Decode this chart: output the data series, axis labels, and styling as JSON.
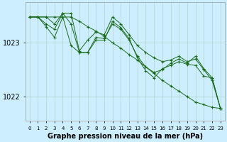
{
  "background_color": "#cceeff",
  "plot_bg_color": "#cceeff",
  "grid_color": "#aaccbb",
  "line_color": "#1a6b1a",
  "marker_color": "#1a6b1a",
  "xlabel": "Graphe pression niveau de la mer (hPa)",
  "xlabel_fontsize": 7,
  "ylabel_fontsize": 7,
  "yticks": [
    1022,
    1023
  ],
  "xlim": [
    -0.5,
    23.5
  ],
  "ylim": [
    1021.55,
    1023.75
  ],
  "series": [
    {
      "x": [
        0,
        1,
        2,
        3,
        4,
        5,
        6,
        7,
        8,
        9,
        10,
        11,
        12,
        13,
        14,
        15,
        16,
        17,
        18,
        19,
        20,
        21,
        22,
        23
      ],
      "y": [
        1023.48,
        1023.48,
        1023.48,
        1023.48,
        1023.48,
        1023.48,
        1023.4,
        1023.3,
        1023.22,
        1023.12,
        1023.0,
        1022.9,
        1022.78,
        1022.68,
        1022.55,
        1022.43,
        1022.3,
        1022.2,
        1022.1,
        1022.0,
        1021.9,
        1021.85,
        1021.8,
        1021.78
      ]
    },
    {
      "x": [
        0,
        1,
        2,
        3,
        4,
        5,
        6,
        7,
        8,
        9,
        10,
        11,
        12,
        13,
        14,
        15,
        16,
        17,
        18,
        19,
        20,
        21,
        22,
        23
      ],
      "y": [
        1023.48,
        1023.48,
        1023.48,
        1023.35,
        1023.55,
        1023.55,
        1022.85,
        1023.05,
        1023.2,
        1023.15,
        1023.48,
        1023.35,
        1023.15,
        1022.95,
        1022.82,
        1022.72,
        1022.65,
        1022.68,
        1022.75,
        1022.65,
        1022.7,
        1022.5,
        1022.3,
        1021.78
      ]
    },
    {
      "x": [
        0,
        1,
        2,
        3,
        4,
        5,
        6,
        7,
        8,
        9,
        10,
        11,
        12,
        13,
        14,
        15,
        16,
        17,
        18,
        19,
        20,
        21,
        22,
        23
      ],
      "y": [
        1023.48,
        1023.48,
        1023.35,
        1023.25,
        1023.55,
        1023.35,
        1022.82,
        1022.82,
        1023.1,
        1023.08,
        1023.35,
        1023.25,
        1023.05,
        1022.75,
        1022.55,
        1022.45,
        1022.5,
        1022.62,
        1022.7,
        1022.62,
        1022.75,
        1022.52,
        1022.35,
        1021.78
      ]
    },
    {
      "x": [
        0,
        1,
        2,
        3,
        4,
        5,
        6,
        7,
        8,
        9,
        10,
        11,
        12,
        13,
        14,
        15,
        16,
        17,
        18,
        19,
        20,
        21,
        22,
        23
      ],
      "y": [
        1023.48,
        1023.48,
        1023.3,
        1023.1,
        1023.48,
        1022.95,
        1022.82,
        1022.82,
        1023.05,
        1023.05,
        1023.4,
        1023.28,
        1023.08,
        1022.72,
        1022.48,
        1022.35,
        1022.52,
        1022.58,
        1022.65,
        1022.6,
        1022.58,
        1022.38,
        1022.35,
        1021.78
      ]
    }
  ]
}
